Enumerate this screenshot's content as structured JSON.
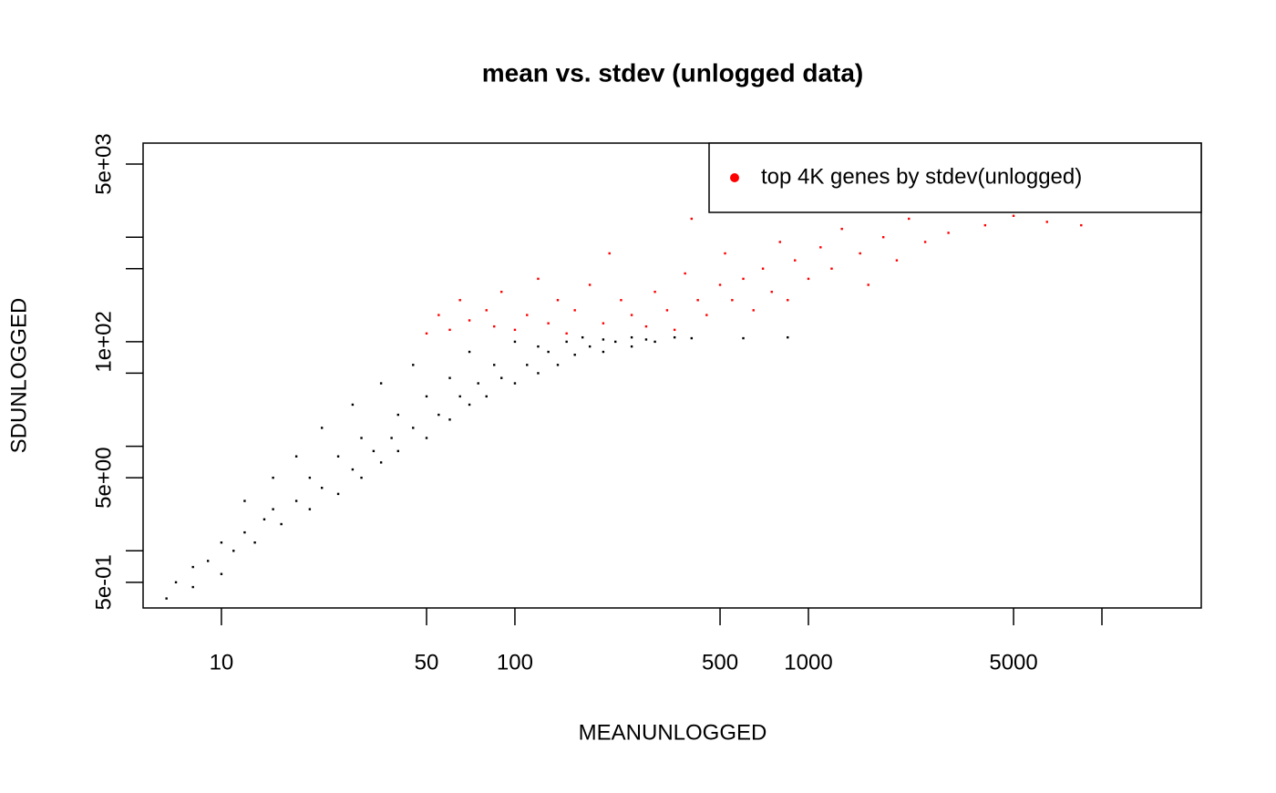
{
  "chart_data": {
    "type": "scatter",
    "title": "mean vs. stdev (unlogged data)",
    "x_label": "MEANUNLOGGED",
    "y_label": "SDUNLOGGED",
    "log_x": true,
    "log_y": true,
    "xlim": [
      5.41,
      21800
    ],
    "ylim": [
      0.284,
      7940
    ],
    "xticks": [
      10,
      50,
      100,
      500,
      1000,
      5000,
      {
        "value": 10000,
        "label": null
      }
    ],
    "yticks": [
      {
        "value": 0.5,
        "label": "5e-01"
      },
      {
        "value": 1,
        "label": null
      },
      {
        "value": 5,
        "label": "5e+00"
      },
      {
        "value": 10,
        "label": null
      },
      {
        "value": 50,
        "label": null
      },
      {
        "value": 100,
        "label": "1e+02"
      },
      {
        "value": 500,
        "label": null
      },
      {
        "value": 1000,
        "label": null
      },
      {
        "value": 5000,
        "label": "5e+03"
      }
    ],
    "legend": "top-right",
    "series": [
      {
        "name": null,
        "color": "#000000",
        "x": [
          6.5,
          7,
          8,
          8,
          9,
          10,
          10,
          11,
          12,
          12,
          13,
          14,
          15,
          15,
          16,
          18,
          18,
          20,
          20,
          22,
          22,
          25,
          25,
          28,
          28,
          30,
          30,
          33,
          35,
          35,
          38,
          40,
          40,
          45,
          45,
          50,
          50,
          55,
          60,
          60,
          65,
          70,
          70,
          75,
          80,
          85,
          90,
          100,
          100,
          110,
          120,
          120,
          130,
          140,
          150,
          160,
          170,
          180,
          200,
          200,
          220,
          250,
          250,
          280,
          300,
          350,
          400,
          600,
          850
        ],
        "values": [
          0.35,
          0.5,
          0.45,
          0.7,
          0.8,
          0.6,
          1.2,
          1,
          1.5,
          3,
          1.2,
          2,
          2.5,
          5,
          1.8,
          3,
          8,
          2.5,
          5,
          4,
          15,
          3.5,
          8,
          6,
          25,
          5,
          12,
          9,
          7,
          40,
          12,
          9,
          20,
          15,
          60,
          12,
          30,
          20,
          18,
          45,
          30,
          25,
          80,
          40,
          30,
          60,
          45,
          40,
          100,
          60,
          50,
          90,
          80,
          60,
          100,
          75,
          110,
          90,
          80,
          105,
          100,
          90,
          110,
          105,
          100,
          110,
          108,
          108,
          110
        ]
      },
      {
        "name": "top 4K genes by stdev(unlogged)",
        "color": "#ff0000",
        "x": [
          50,
          55,
          60,
          65,
          70,
          80,
          85,
          90,
          100,
          110,
          120,
          130,
          140,
          150,
          160,
          180,
          200,
          210,
          230,
          250,
          280,
          300,
          330,
          350,
          380,
          400,
          420,
          450,
          500,
          520,
          550,
          600,
          650,
          700,
          750,
          800,
          850,
          900,
          1000,
          1100,
          1200,
          1300,
          1500,
          1600,
          1800,
          2000,
          2200,
          2500,
          2800,
          3000,
          3500,
          4000,
          4500,
          5000,
          6000,
          6500,
          7000,
          8000,
          8500
        ],
        "values": [
          120,
          180,
          130,
          250,
          160,
          200,
          140,
          300,
          130,
          180,
          400,
          150,
          250,
          120,
          200,
          350,
          150,
          700,
          250,
          180,
          140,
          300,
          200,
          130,
          450,
          1500,
          250,
          180,
          350,
          700,
          250,
          400,
          200,
          500,
          300,
          900,
          250,
          600,
          400,
          800,
          500,
          1200,
          700,
          350,
          1000,
          600,
          1500,
          900,
          1800,
          1100,
          2000,
          1300,
          2200,
          1600,
          2500,
          1400,
          2000,
          1800,
          1300
        ]
      }
    ]
  }
}
